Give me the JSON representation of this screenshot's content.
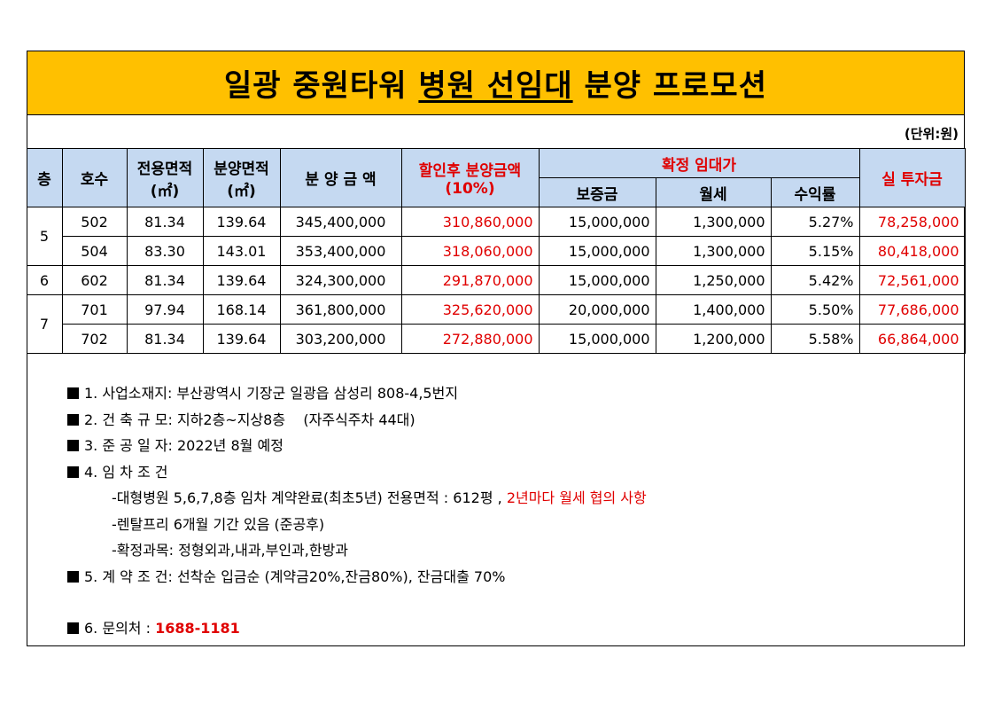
{
  "title": {
    "part1": "일광 중원타워 ",
    "part2": "병원 선임대",
    "part3": " 분양 프로모션"
  },
  "unit": "(단위:원)",
  "headers": {
    "floor": "층",
    "unit_no": "호수",
    "exclusive_area": "전용면적",
    "sale_area": "분양면적",
    "area_unit": "(㎡)",
    "sale_price": "분 양 금 액",
    "discount_price": "할인후 분양금액",
    "discount_rate": "(10%)",
    "lease": "확정 임대가",
    "deposit": "보증금",
    "monthly_rent": "월세",
    "yield": "수익률",
    "actual_investment": "실 투자금"
  },
  "rows": [
    {
      "floor": "5",
      "unit": "502",
      "exclusive": "81.34",
      "area": "139.64",
      "price": "345,400,000",
      "discounted": "310,860,000",
      "deposit": "15,000,000",
      "rent": "1,300,000",
      "yield": "5.27%",
      "invest": "78,258,000"
    },
    {
      "floor": "",
      "unit": "504",
      "exclusive": "83.30",
      "area": "143.01",
      "price": "353,400,000",
      "discounted": "318,060,000",
      "deposit": "15,000,000",
      "rent": "1,300,000",
      "yield": "5.15%",
      "invest": "80,418,000"
    },
    {
      "floor": "6",
      "unit": "602",
      "exclusive": "81.34",
      "area": "139.64",
      "price": "324,300,000",
      "discounted": "291,870,000",
      "deposit": "15,000,000",
      "rent": "1,250,000",
      "yield": "5.42%",
      "invest": "72,561,000"
    },
    {
      "floor": "7",
      "unit": "701",
      "exclusive": "97.94",
      "area": "168.14",
      "price": "361,800,000",
      "discounted": "325,620,000",
      "deposit": "20,000,000",
      "rent": "1,400,000",
      "yield": "5.50%",
      "invest": "77,686,000"
    },
    {
      "floor": "",
      "unit": "702",
      "exclusive": "81.34",
      "area": "139.64",
      "price": "303,200,000",
      "discounted": "272,880,000",
      "deposit": "15,000,000",
      "rent": "1,200,000",
      "yield": "5.58%",
      "invest": "66,864,000"
    }
  ],
  "notes": {
    "n1": "1. 사업소재지: 부산광역시 기장군 일광읍 삼성리 808-4,5번지",
    "n2": "2. 건 축 규 모: 지하2층~지상8층    (자주식주차 44대)",
    "n3": "3. 준 공 일 자: 2022년 8월 예정",
    "n4": "4. 임 차 조 건",
    "n4a": "-대형병원 5,6,7,8층 임차 계약완료(최초5년) 전용면적 : 612평 , ",
    "n4a_red": "2년마다 월세 협의 사항",
    "n4b": "-렌탈프리 6개월 기간 있음 (준공후)",
    "n4c": "-확정과목: 정형외과,내과,부인과,한방과",
    "n5": "5. 계 약 조 건: 선착순 입금순 (계약금20%,잔금80%), 잔금대출 70%",
    "n6": "6. 문의처 : ",
    "phone": "1688-1181"
  }
}
